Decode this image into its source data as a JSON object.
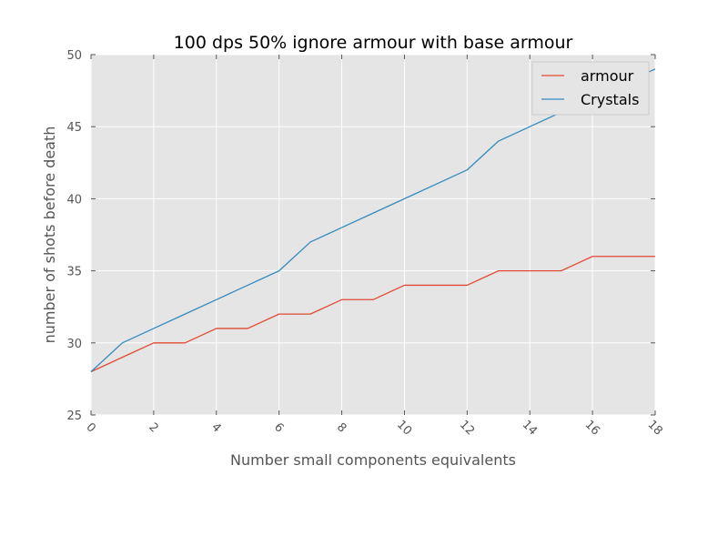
{
  "chart_data": {
    "type": "line",
    "title": "100 dps 50% ignore armour with base armour",
    "xlabel": "Number small components equivalents",
    "ylabel": "number of shots before death",
    "xlim": [
      0,
      18
    ],
    "ylim": [
      25,
      50
    ],
    "xticks": [
      "0",
      "2",
      "4",
      "6",
      "8",
      "10",
      "12",
      "14",
      "16",
      "18"
    ],
    "yticks": [
      "25",
      "30",
      "35",
      "40",
      "45",
      "50"
    ],
    "grid": true,
    "legend_position": "top-right",
    "x": [
      0,
      1,
      2,
      3,
      4,
      5,
      6,
      7,
      8,
      9,
      10,
      11,
      12,
      13,
      14,
      15,
      16,
      17,
      18
    ],
    "series": [
      {
        "name": "armour",
        "color": "#e24a33",
        "values": [
          28,
          29,
          30,
          30,
          31,
          31,
          32,
          32,
          33,
          33,
          34,
          34,
          34,
          35,
          35,
          35,
          36,
          36,
          36
        ]
      },
      {
        "name": "Crystals",
        "color": "#348abd",
        "values": [
          28,
          30,
          31,
          32,
          33,
          34,
          35,
          37,
          38,
          39,
          40,
          41,
          42,
          44,
          45,
          46,
          47,
          48,
          49
        ]
      }
    ]
  }
}
